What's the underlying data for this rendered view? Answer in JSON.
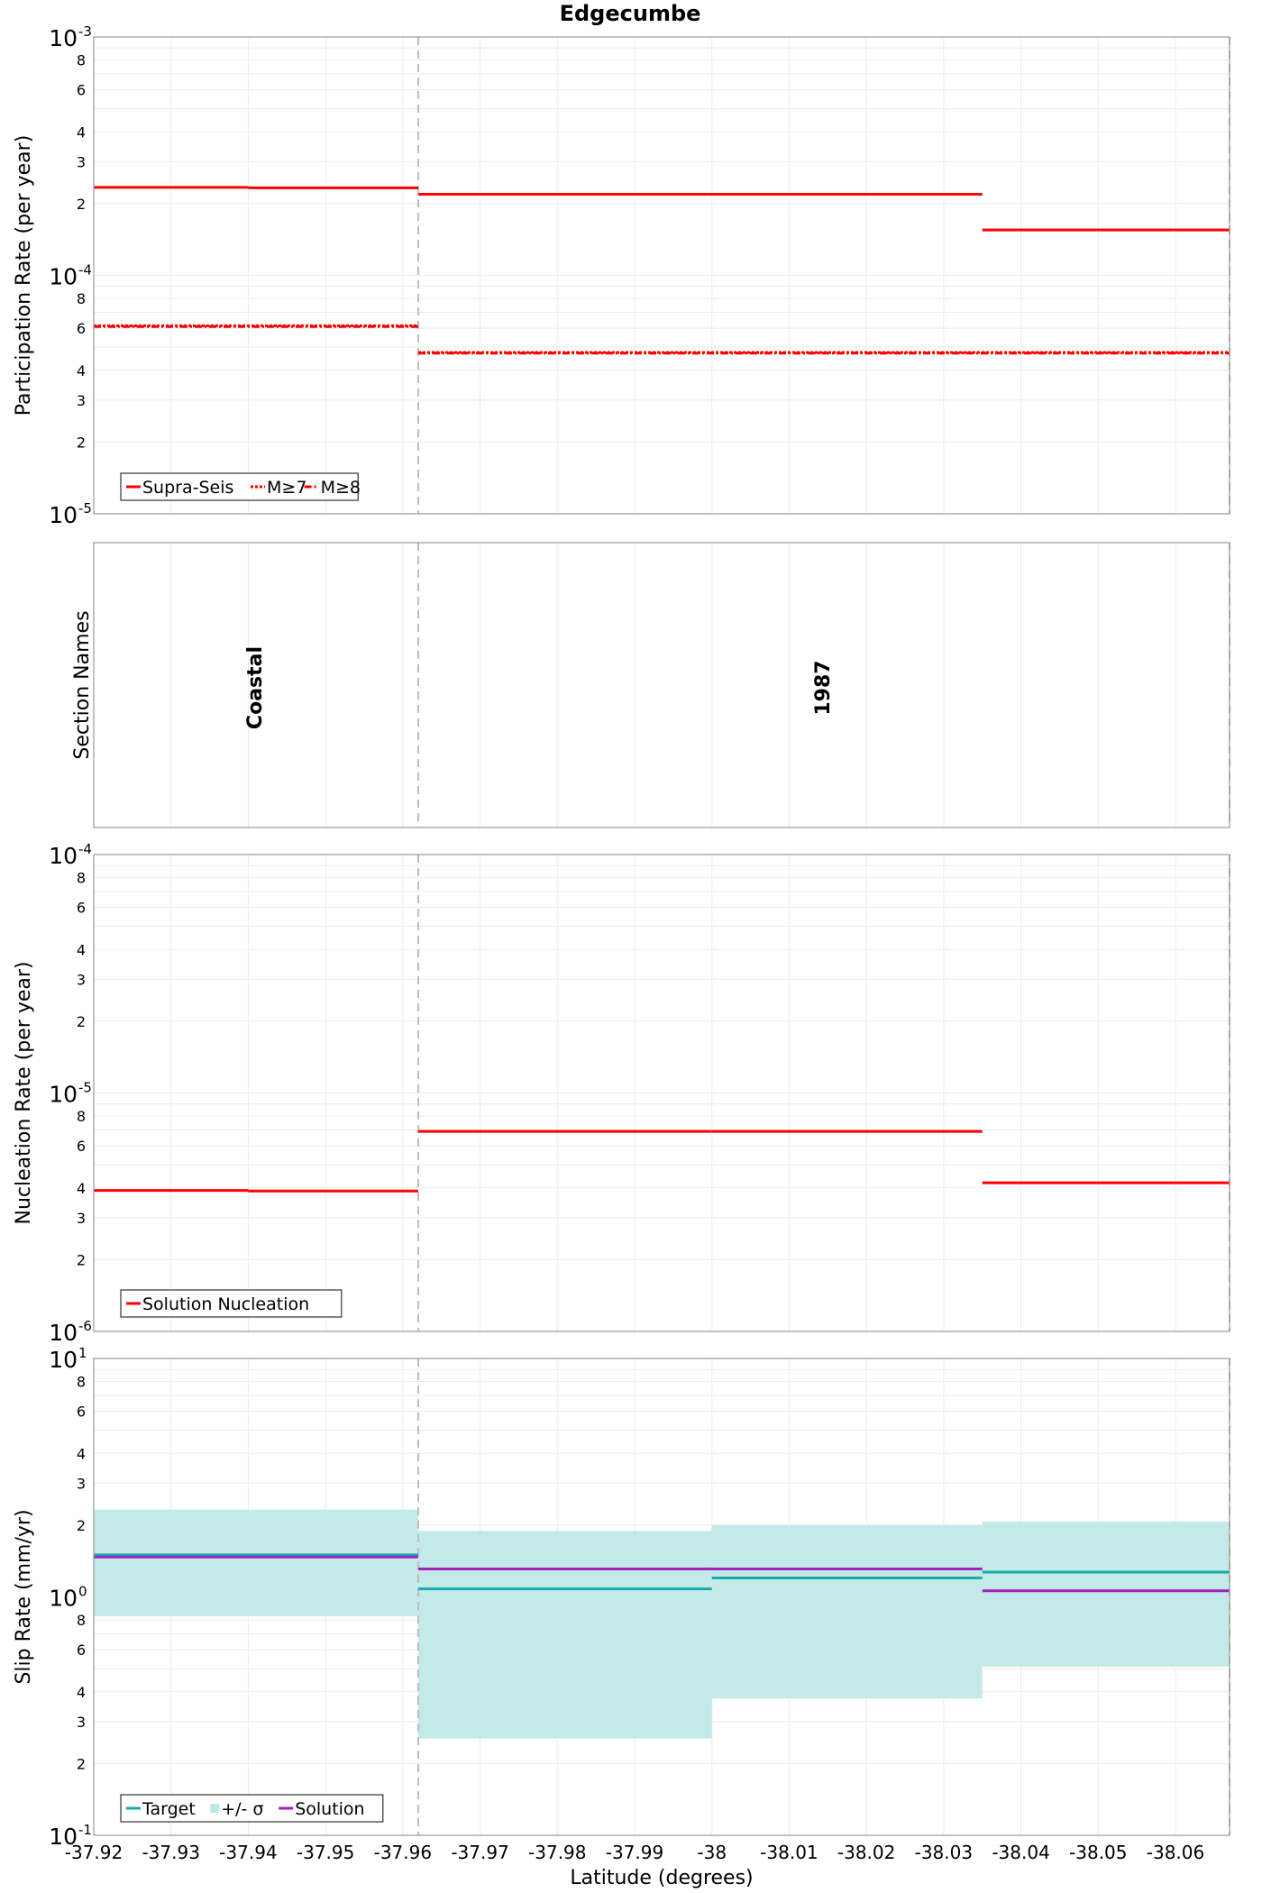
{
  "title": "Edgecumbe",
  "x_axis_label": "Latitude (degrees)",
  "colors": {
    "supra": "#ff0000",
    "target": "#1aaaaa",
    "solution": "#a020c0",
    "sigma": "#bfe9e8",
    "grid": "#ececec",
    "divider": "#bdbdbd"
  },
  "chart_data": [
    {
      "type": "line",
      "title": "Edgecumbe",
      "ylabel": "Participation Rate (per year)",
      "xlabel": "",
      "yscale": "log",
      "ylim": [
        1e-05,
        0.001
      ],
      "xlim": [
        -37.92,
        -38.067
      ],
      "legend_position": "bottom-left",
      "section_boundaries": [
        -37.962,
        -38.067
      ],
      "series": [
        {
          "name": "Supra-Seis",
          "style": "solid",
          "segments": [
            {
              "x": [
                -37.92,
                -37.94
              ],
              "y": 0.000234
            },
            {
              "x": [
                -37.94,
                -37.962
              ],
              "y": 0.000233
            },
            {
              "x": [
                -37.962,
                -38.035
              ],
              "y": 0.000219
            },
            {
              "x": [
                -38.035,
                -38.067
              ],
              "y": 0.000155
            }
          ]
        },
        {
          "name": "M≥7",
          "style": "dotted",
          "segments": [
            {
              "x": [
                -37.92,
                -37.962
              ],
              "y": 6.15e-05
            },
            {
              "x": [
                -37.962,
                -38.067
              ],
              "y": 4.75e-05
            }
          ]
        },
        {
          "name": "M≥8",
          "style": "dashdot",
          "segments": [
            {
              "x": [
                -37.92,
                -37.962
              ],
              "y": 6.1e-05
            },
            {
              "x": [
                -37.962,
                -38.067
              ],
              "y": 4.72e-05
            }
          ]
        }
      ]
    },
    {
      "type": "table",
      "ylabel": "Section Names",
      "sections": [
        {
          "name": "Coastal",
          "x_center": -37.941
        },
        {
          "name": "1987",
          "x_center": -38.0145
        }
      ]
    },
    {
      "type": "line",
      "ylabel": "Nucleation Rate (per year)",
      "yscale": "log",
      "ylim": [
        1e-06,
        0.0001
      ],
      "legend_position": "bottom-left",
      "series": [
        {
          "name": "Solution Nucleation",
          "style": "solid",
          "segments": [
            {
              "x": [
                -37.92,
                -37.94
              ],
              "y": 3.9e-06
            },
            {
              "x": [
                -37.94,
                -37.962
              ],
              "y": 3.88e-06
            },
            {
              "x": [
                -37.962,
                -38.0
              ],
              "y": 6.9e-06
            },
            {
              "x": [
                -38.0,
                -38.035
              ],
              "y": 6.9e-06
            },
            {
              "x": [
                -38.035,
                -38.067
              ],
              "y": 4.2e-06
            }
          ]
        }
      ]
    },
    {
      "type": "area",
      "ylabel": "Slip Rate (mm/yr)",
      "yscale": "log",
      "ylim": [
        0.1,
        10
      ],
      "legend_position": "bottom-left",
      "series": [
        {
          "name": "Target",
          "style": "solid",
          "segments": [
            {
              "x": [
                -37.92,
                -37.962
              ],
              "y": 1.5
            },
            {
              "x": [
                -37.962,
                -38.0
              ],
              "y": 1.08
            },
            {
              "x": [
                -38.0,
                -38.035
              ],
              "y": 1.2
            },
            {
              "x": [
                -38.035,
                -38.067
              ],
              "y": 1.27
            }
          ]
        },
        {
          "name": "+/- σ",
          "style": "band",
          "segments": [
            {
              "x": [
                -37.92,
                -37.962
              ],
              "lo": 0.83,
              "hi": 2.32
            },
            {
              "x": [
                -37.962,
                -38.0
              ],
              "lo": 0.255,
              "hi": 1.89
            },
            {
              "x": [
                -38.0,
                -38.035
              ],
              "lo": 0.375,
              "hi": 2.0
            },
            {
              "x": [
                -38.035,
                -38.067
              ],
              "lo": 0.51,
              "hi": 2.07
            }
          ]
        },
        {
          "name": "Solution",
          "style": "solid",
          "segments": [
            {
              "x": [
                -37.92,
                -37.962
              ],
              "y": 1.47
            },
            {
              "x": [
                -37.962,
                -38.035
              ],
              "y": 1.31
            },
            {
              "x": [
                -38.035,
                -38.067
              ],
              "y": 1.06
            }
          ]
        }
      ]
    }
  ],
  "x_ticks": [
    {
      "v": -37.92,
      "label": "-37.92"
    },
    {
      "v": -37.93,
      "label": "-37.93"
    },
    {
      "v": -37.94,
      "label": "-37.94"
    },
    {
      "v": -37.95,
      "label": "-37.95"
    },
    {
      "v": -37.96,
      "label": "-37.96"
    },
    {
      "v": -37.97,
      "label": "-37.97"
    },
    {
      "v": -37.98,
      "label": "-37.98"
    },
    {
      "v": -37.99,
      "label": "-37.99"
    },
    {
      "v": -38.0,
      "label": "-38"
    },
    {
      "v": -38.01,
      "label": "-38.01"
    },
    {
      "v": -38.02,
      "label": "-38.02"
    },
    {
      "v": -38.03,
      "label": "-38.03"
    },
    {
      "v": -38.04,
      "label": "-38.04"
    },
    {
      "v": -38.05,
      "label": "-38.05"
    },
    {
      "v": -38.06,
      "label": "-38.06"
    }
  ],
  "decade_labels": {
    "p1": [
      {
        "base": "10",
        "exp": "-3"
      },
      {
        "base": "10",
        "exp": "-4"
      },
      {
        "base": "10",
        "exp": "-5"
      }
    ],
    "p3": [
      {
        "base": "10",
        "exp": "-4"
      },
      {
        "base": "10",
        "exp": "-5"
      },
      {
        "base": "10",
        "exp": "-6"
      }
    ],
    "p4": [
      {
        "base": "10",
        "exp": "1"
      },
      {
        "base": "10",
        "exp": "0"
      },
      {
        "base": "10",
        "exp": "-1"
      }
    ]
  },
  "minor_tick_labels": [
    "2",
    "3",
    "4",
    "6",
    "8"
  ]
}
